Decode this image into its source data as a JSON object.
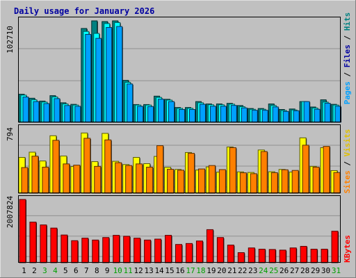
{
  "chart_data": {
    "type": "bar",
    "title": "Daily usage for January 2026",
    "days": [
      "1",
      "2",
      "3",
      "4",
      "5",
      "6",
      "7",
      "8",
      "9",
      "10",
      "11",
      "12",
      "13",
      "14",
      "15",
      "16",
      "17",
      "18",
      "19",
      "20",
      "21",
      "22",
      "23",
      "24",
      "25",
      "26",
      "27",
      "28",
      "29",
      "30",
      "31"
    ],
    "weekend_days": [
      "3",
      "4",
      "10",
      "11",
      "17",
      "18",
      "24",
      "25",
      "31"
    ],
    "panels": [
      {
        "id": "hits-files-pages",
        "ylabel_max": "102710",
        "max_value": 102710,
        "series": [
          {
            "name": "Hits",
            "color": "#008080",
            "values": [
              28440,
              24400,
              21500,
              27000,
              19800,
              18200,
              95000,
              102710,
              102000,
              102710,
              42500,
              18000,
              18000,
              26500,
              23300,
              15000,
              15000,
              21000,
              18600,
              18600,
              19200,
              17000,
              14000,
              14000,
              18600,
              13000,
              13500,
              21000,
              15500,
              22800,
              18200
            ]
          },
          {
            "name": "Files",
            "color": "#00ffff",
            "values": [
              27500,
              22800,
              20500,
              25700,
              18600,
              17500,
              92000,
              90000,
              100000,
              101000,
              40500,
              17500,
              17500,
              25200,
              22500,
              14200,
              14200,
              19800,
              17800,
              17800,
              18400,
              15800,
              13200,
              13200,
              17000,
              12000,
              12500,
              21000,
              14500,
              20500,
              17500
            ]
          },
          {
            "name": "Pages",
            "color": "#00a0ff",
            "values": [
              25600,
              21000,
              19000,
              24000,
              17000,
              16200,
              89000,
              85000,
              96000,
              97000,
              38800,
              16200,
              16000,
              23400,
              21000,
              13000,
              13000,
              18300,
              16300,
              16300,
              17100,
              14600,
              12200,
              12200,
              15600,
              11000,
              11700,
              21000,
              13200,
              19300,
              16300
            ]
          }
        ]
      },
      {
        "id": "visits-sites",
        "ylabel_max": "794",
        "max_value": 794,
        "series": [
          {
            "name": "Visits",
            "color": "#ffff00",
            "values": [
              440,
              504,
              396,
              706,
              457,
              328,
              740,
              388,
              735,
              392,
              352,
              440,
              363,
              452,
              318,
              292,
              500,
              285,
              323,
              259,
              568,
              262,
              255,
              531,
              264,
              292,
              260,
              680,
              330,
              560,
              278
            ]
          },
          {
            "name": "Sites",
            "color": "#ff8000",
            "values": [
              315,
              455,
              320,
              650,
              360,
              345,
              675,
              330,
              655,
              375,
              340,
              360,
              320,
              584,
              294,
              283,
              490,
              298,
              340,
              290,
              560,
              251,
              240,
              512,
              252,
              288,
              280,
              590,
              320,
              575,
              254
            ]
          }
        ]
      },
      {
        "id": "kbytes",
        "ylabel_max": "2007824",
        "max_value": 2007824,
        "series": [
          {
            "name": "KBytes",
            "color": "#ff0000",
            "values": [
              2007824,
              1290000,
              1200000,
              1100000,
              880000,
              700000,
              780000,
              720000,
              800000,
              870000,
              840000,
              780000,
              720000,
              750000,
              870000,
              580000,
              610000,
              690000,
              1050000,
              800000,
              560000,
              320000,
              470000,
              430000,
              420000,
              400000,
              470000,
              520000,
              430000,
              430000,
              1000000
            ]
          }
        ]
      }
    ],
    "right_labels": [
      {
        "panel": "hits-files-pages",
        "parts": [
          {
            "text": "Pages",
            "color": "#00a0ff"
          },
          {
            "text": " / ",
            "color": "#000000"
          },
          {
            "text": "Files",
            "color": "#0000a0"
          },
          {
            "text": " / ",
            "color": "#000000"
          },
          {
            "text": "Hits",
            "color": "#008080"
          }
        ]
      },
      {
        "panel": "visits-sites",
        "parts": [
          {
            "text": "Sites",
            "color": "#ff8000"
          },
          {
            "text": " / ",
            "color": "#000000"
          },
          {
            "text": "Visits",
            "color": "#e0c000"
          }
        ]
      },
      {
        "panel": "kbytes",
        "parts": [
          {
            "text": "KBytes",
            "color": "#ff0000"
          }
        ]
      }
    ],
    "colors": {
      "background": "#c0c0c0",
      "plot": "#c0c0c0",
      "title": "#0000a0",
      "weekday_label": "#000000",
      "weekend_label": "#00a000"
    },
    "grid": true
  }
}
